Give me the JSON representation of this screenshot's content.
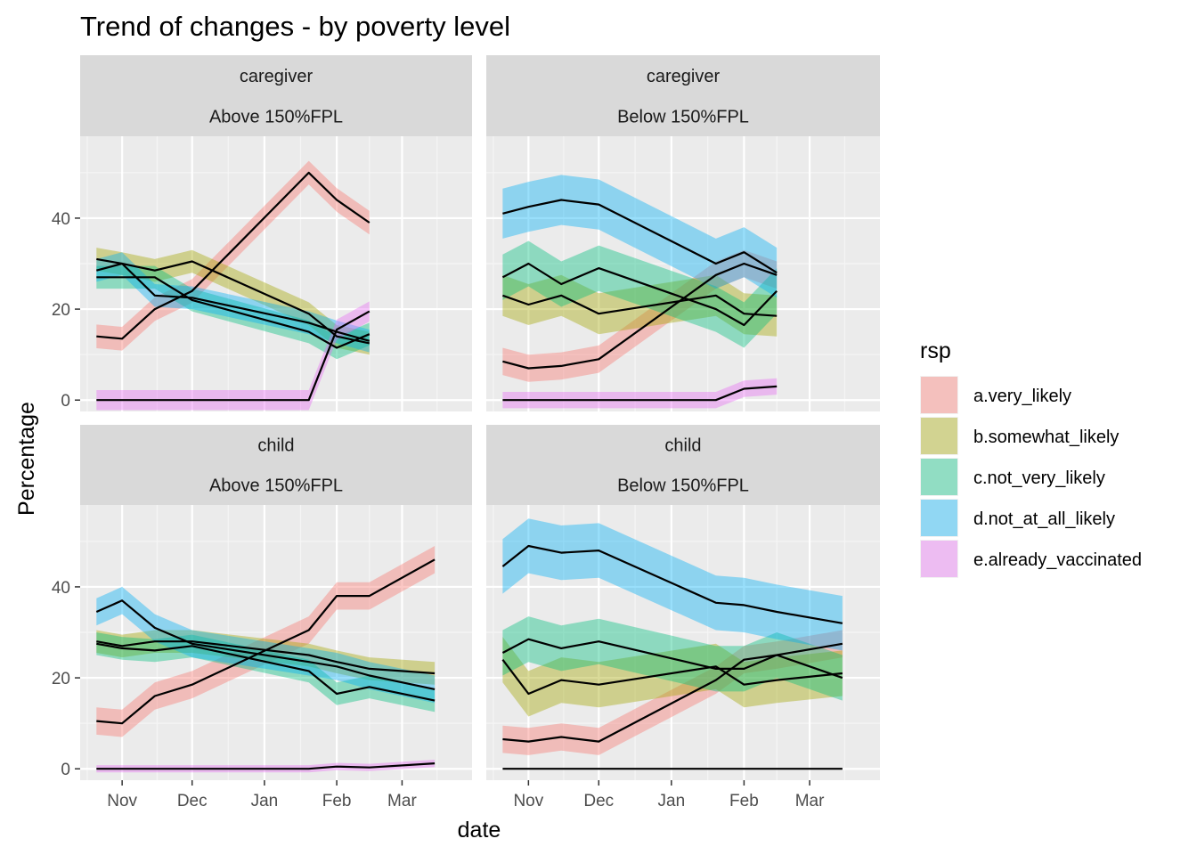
{
  "chart_data": {
    "type": "line",
    "title": "Trend of changes - by poverty level",
    "xlabel": "date",
    "ylabel": "Percentage",
    "x_ticks": [
      "Nov",
      "Dec",
      "Jan",
      "Feb",
      "Mar"
    ],
    "x_tick_dates": [
      "2020-11-01",
      "2020-12-01",
      "2021-01-01",
      "2021-02-01",
      "2021-03-01"
    ],
    "y_ticks": [
      0,
      20,
      40
    ],
    "ylim": [
      -2.5,
      58
    ],
    "grid": true,
    "legend": {
      "title": "rsp",
      "position": "right",
      "entries": [
        "a.very_likely",
        "b.somewhat_likely",
        "c.not_very_likely",
        "d.not_at_all_likely",
        "e.already_vaccinated"
      ]
    },
    "colors": {
      "a.very_likely": "#F8766D",
      "b.somewhat_likely": "#A3A500",
      "c.not_very_likely": "#00BF7D",
      "d.not_at_all_likely": "#00B0F6",
      "e.already_vaccinated": "#E76BF3"
    },
    "panels": [
      {
        "strip_top": "caregiver",
        "strip_bottom": "Above 150%FPL",
        "xlim": [
          "2020-10-14",
          "2021-03-31"
        ],
        "series": [
          {
            "name": "a.very_likely",
            "x": [
              "2020-10-21",
              "2020-11-01",
              "2020-11-15",
              "2020-12-01",
              "2021-01-20",
              "2021-02-01",
              "2021-02-15"
            ],
            "y": [
              14,
              13.5,
              20,
              24,
              50,
              44,
              39
            ],
            "band": 2.6
          },
          {
            "name": "b.somewhat_likely",
            "x": [
              "2020-10-21",
              "2020-11-01",
              "2020-11-15",
              "2020-12-01",
              "2021-01-20",
              "2021-02-01",
              "2021-02-15"
            ],
            "y": [
              31,
              30,
              28.5,
              30.5,
              19,
              14,
              12.5
            ],
            "band": 2.5
          },
          {
            "name": "c.not_very_likely",
            "x": [
              "2020-10-21",
              "2020-11-01",
              "2020-11-15",
              "2020-12-01",
              "2021-01-20",
              "2021-02-01",
              "2021-02-15"
            ],
            "y": [
              27,
              27,
              27,
              22,
              15,
              11.5,
              14.5
            ],
            "band": 2.5
          },
          {
            "name": "d.not_at_all_likely",
            "x": [
              "2020-10-21",
              "2020-11-01",
              "2020-11-15",
              "2020-12-01",
              "2021-01-20",
              "2021-02-01",
              "2021-02-15"
            ],
            "y": [
              28.5,
              30,
              23,
              22.5,
              17,
              15,
              13
            ],
            "band": 2.5
          },
          {
            "name": "e.already_vaccinated",
            "x": [
              "2020-10-21",
              "2020-11-01",
              "2020-11-15",
              "2020-12-01",
              "2021-01-20",
              "2021-02-01",
              "2021-02-15"
            ],
            "y": [
              0,
              0,
              0,
              0,
              0,
              15.5,
              19.5
            ],
            "band": 2.2
          }
        ]
      },
      {
        "strip_top": "caregiver",
        "strip_bottom": "Below 150%FPL",
        "xlim": [
          "2020-10-14",
          "2021-03-31"
        ],
        "series": [
          {
            "name": "a.very_likely",
            "x": [
              "2020-10-21",
              "2020-11-01",
              "2020-11-15",
              "2020-12-01",
              "2021-01-20",
              "2021-02-01",
              "2021-02-15"
            ],
            "y": [
              8.5,
              7,
              7.5,
              9,
              27.5,
              30,
              27.5
            ],
            "band": 3
          },
          {
            "name": "b.somewhat_likely",
            "x": [
              "2020-10-21",
              "2020-11-01",
              "2020-11-15",
              "2020-12-01",
              "2021-01-20",
              "2021-02-01",
              "2021-02-15"
            ],
            "y": [
              23,
              21,
              23,
              19,
              23,
              19,
              18.5
            ],
            "band": 4.5
          },
          {
            "name": "c.not_very_likely",
            "x": [
              "2020-10-21",
              "2020-11-01",
              "2020-11-15",
              "2020-12-01",
              "2021-01-20",
              "2021-02-01",
              "2021-02-15"
            ],
            "y": [
              27,
              30,
              25.5,
              29,
              20,
              16.5,
              24
            ],
            "band": 5
          },
          {
            "name": "d.not_at_all_likely",
            "x": [
              "2020-10-21",
              "2020-11-01",
              "2020-11-15",
              "2020-12-01",
              "2021-01-20",
              "2021-02-01",
              "2021-02-15"
            ],
            "y": [
              41,
              42.5,
              44,
              43,
              30,
              32.5,
              28
            ],
            "band": 5.5
          },
          {
            "name": "e.already_vaccinated",
            "x": [
              "2020-10-21",
              "2020-11-01",
              "2020-11-15",
              "2020-12-01",
              "2021-01-20",
              "2021-02-01",
              "2021-02-15"
            ],
            "y": [
              0,
              0,
              0,
              0,
              0,
              2.5,
              3
            ],
            "band": 1.8
          }
        ]
      },
      {
        "strip_top": "child",
        "strip_bottom": "Above 150%FPL",
        "xlim": [
          "2020-10-14",
          "2021-03-31"
        ],
        "series": [
          {
            "name": "a.very_likely",
            "x": [
              "2020-10-21",
              "2020-11-01",
              "2020-11-15",
              "2020-12-01",
              "2021-01-20",
              "2021-02-01",
              "2021-02-15",
              "2021-03-15"
            ],
            "y": [
              10.5,
              10,
              16,
              18.5,
              30.5,
              38,
              38,
              46
            ],
            "band": 3
          },
          {
            "name": "b.somewhat_likely",
            "x": [
              "2020-10-21",
              "2020-11-01",
              "2020-11-15",
              "2020-12-01",
              "2021-01-20",
              "2021-02-01",
              "2021-02-15",
              "2021-03-15"
            ],
            "y": [
              28,
              27,
              28,
              28,
              25,
              23.5,
              22,
              21
            ],
            "band": 2.5
          },
          {
            "name": "c.not_very_likely",
            "x": [
              "2020-10-21",
              "2020-11-01",
              "2020-11-15",
              "2020-12-01",
              "2021-01-20",
              "2021-02-01",
              "2021-02-15",
              "2021-03-15"
            ],
            "y": [
              27.5,
              26.5,
              26,
              27,
              21.5,
              16.5,
              18,
              15
            ],
            "band": 2.5
          },
          {
            "name": "d.not_at_all_likely",
            "x": [
              "2020-10-21",
              "2020-11-01",
              "2020-11-15",
              "2020-12-01",
              "2021-01-20",
              "2021-02-01",
              "2021-02-15",
              "2021-03-15"
            ],
            "y": [
              34.5,
              37,
              31,
              27.5,
              23.5,
              22.5,
              20.5,
              17.5
            ],
            "band": 3
          },
          {
            "name": "e.already_vaccinated",
            "x": [
              "2020-10-21",
              "2020-11-01",
              "2020-11-15",
              "2020-12-01",
              "2021-01-20",
              "2021-02-01",
              "2021-02-15",
              "2021-03-15"
            ],
            "y": [
              0,
              0,
              0,
              0,
              0,
              0.5,
              0.3,
              1.2
            ],
            "band": 0.8
          }
        ]
      },
      {
        "strip_top": "child",
        "strip_bottom": "Below 150%FPL",
        "xlim": [
          "2020-10-14",
          "2021-03-31"
        ],
        "series": [
          {
            "name": "a.very_likely",
            "x": [
              "2020-10-21",
              "2020-11-01",
              "2020-11-15",
              "2020-12-01",
              "2021-01-20",
              "2021-02-01",
              "2021-02-15",
              "2021-03-15"
            ],
            "y": [
              6.5,
              6,
              7,
              6,
              19.5,
              24,
              25,
              27.5
            ],
            "band": 3
          },
          {
            "name": "b.somewhat_likely",
            "x": [
              "2020-10-21",
              "2020-11-01",
              "2020-11-15",
              "2020-12-01",
              "2021-01-20",
              "2021-02-01",
              "2021-02-15",
              "2021-03-15"
            ],
            "y": [
              24,
              16.5,
              19.5,
              18.5,
              22.5,
              18.5,
              19.5,
              21
            ],
            "band": 5
          },
          {
            "name": "c.not_very_likely",
            "x": [
              "2020-10-21",
              "2020-11-01",
              "2020-11-15",
              "2020-12-01",
              "2021-01-20",
              "2021-02-01",
              "2021-02-15",
              "2021-03-15"
            ],
            "y": [
              25.5,
              28.5,
              26.5,
              28,
              22,
              22,
              25,
              20
            ],
            "band": 5
          },
          {
            "name": "d.not_at_all_likely",
            "x": [
              "2020-10-21",
              "2020-11-01",
              "2020-11-15",
              "2020-12-01",
              "2021-01-20",
              "2021-02-01",
              "2021-02-15",
              "2021-03-15"
            ],
            "y": [
              44.5,
              49,
              47.5,
              48,
              36.5,
              36,
              34.5,
              32
            ],
            "band": 6
          },
          {
            "name": "e.already_vaccinated",
            "x": [
              "2020-10-21",
              "2020-11-01",
              "2020-11-15",
              "2020-12-01",
              "2021-01-20",
              "2021-02-01",
              "2021-02-15",
              "2021-03-15"
            ],
            "y": [
              0,
              0,
              0,
              0,
              0,
              0,
              0,
              0
            ],
            "band": 0
          }
        ]
      }
    ]
  }
}
